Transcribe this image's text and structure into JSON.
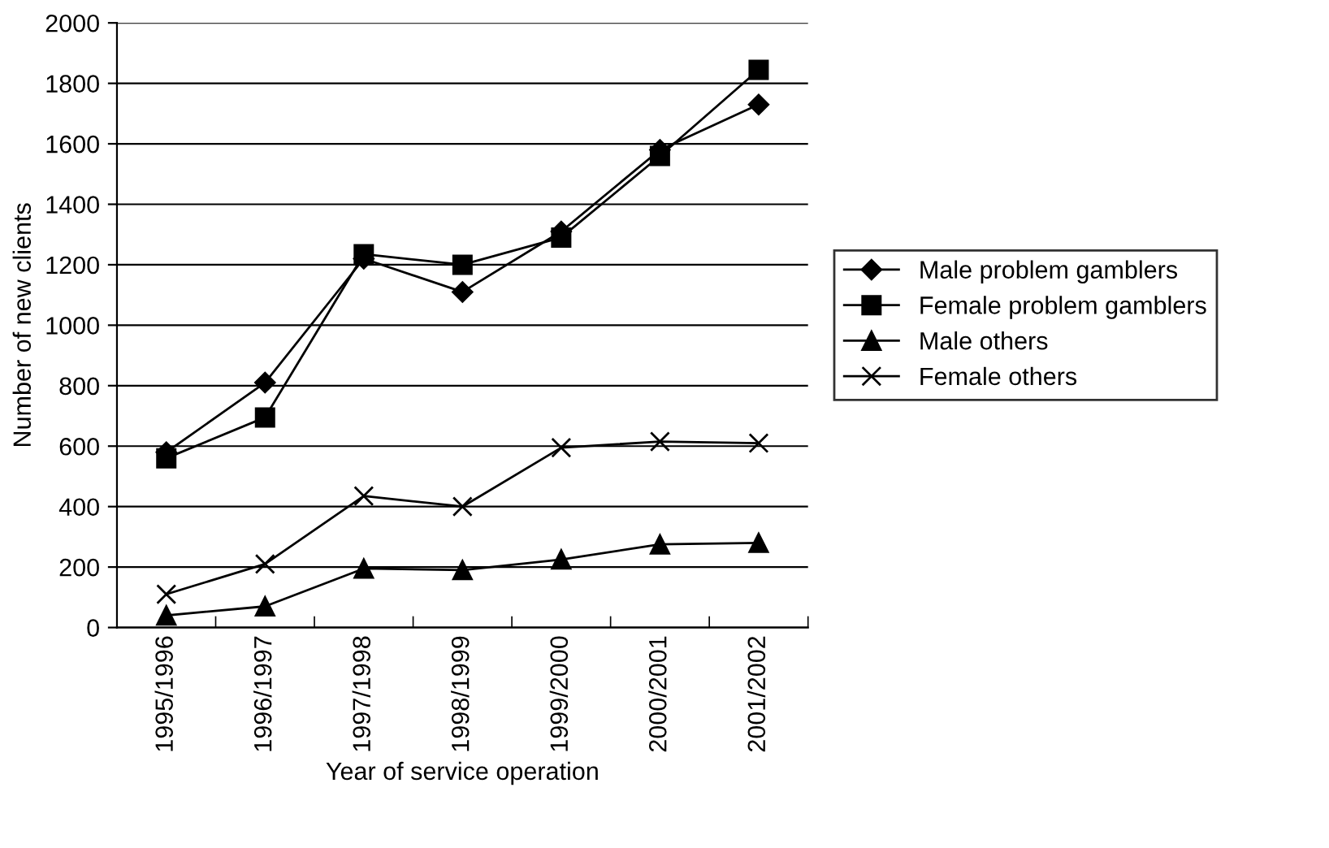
{
  "chart_data": {
    "type": "line",
    "xlabel": "Year of service operation",
    "ylabel": "Number of new clients",
    "categories": [
      "1995/1996",
      "1996/1997",
      "1997/1998",
      "1998/1999",
      "1999/2000",
      "2000/2001",
      "2001/2002"
    ],
    "series": [
      {
        "name": "Male problem gamblers",
        "color": "#000000",
        "marker": "diamond",
        "values": [
          580,
          810,
          1220,
          1110,
          1310,
          1580,
          1730
        ]
      },
      {
        "name": "Female problem gamblers",
        "color": "#000000",
        "marker": "square",
        "values": [
          560,
          695,
          1235,
          1200,
          1290,
          1560,
          1845
        ]
      },
      {
        "name": "Male others",
        "color": "#000000",
        "marker": "triangle",
        "values": [
          40,
          70,
          195,
          190,
          225,
          275,
          280
        ]
      },
      {
        "name": "Female others",
        "color": "#000000",
        "marker": "cross",
        "values": [
          110,
          210,
          435,
          400,
          595,
          615,
          610
        ]
      }
    ],
    "ylim": [
      0,
      2000
    ],
    "yticks": [
      0,
      200,
      400,
      600,
      800,
      1000,
      1200,
      1400,
      1600,
      1800,
      2000
    ],
    "grid": "y",
    "legend": "right",
    "line_style": "solid"
  }
}
